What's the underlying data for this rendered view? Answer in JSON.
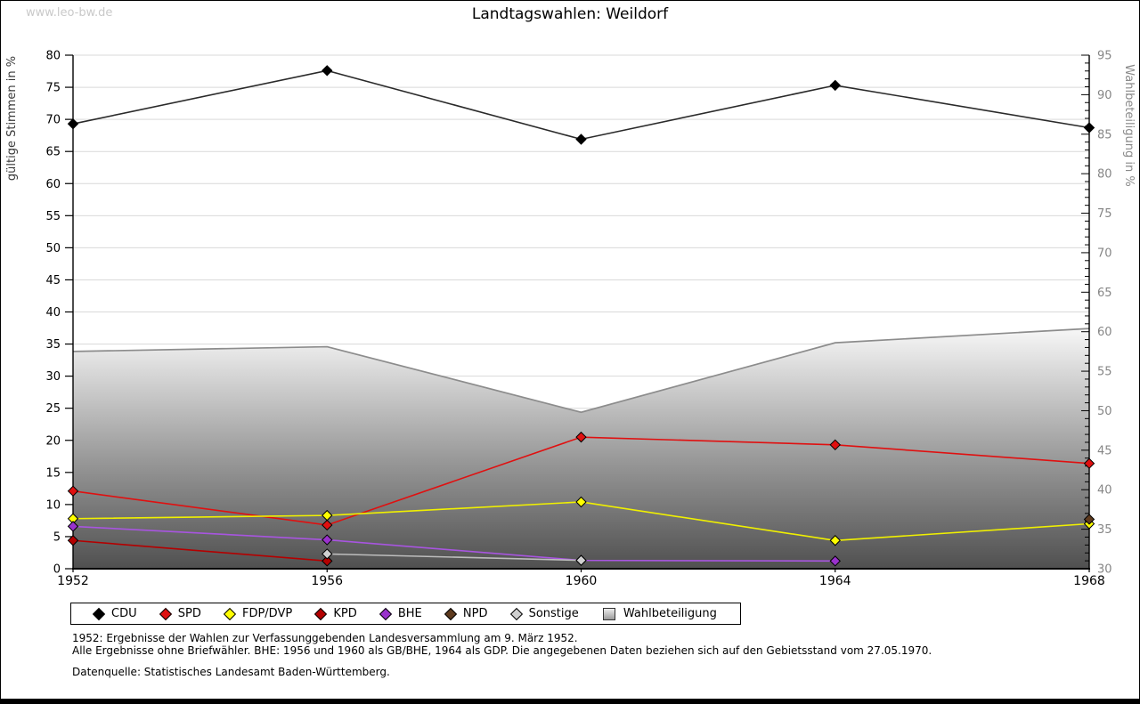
{
  "page": {
    "watermark": "www.leo-bw.de",
    "title": "Landtagswahlen: Weildorf"
  },
  "chart_data": {
    "type": "line",
    "title": "Landtagswahlen: Weildorf",
    "categories": [
      "1952",
      "1956",
      "1960",
      "1964",
      "1968"
    ],
    "axis_left": {
      "label": "gültige Stimmen in %",
      "min": 0,
      "max": 80,
      "step": 5
    },
    "axis_right": {
      "label": "Wahlbeteiligung in %",
      "min": 30,
      "max": 95,
      "step": 5,
      "minor_step": 1
    },
    "grid": true,
    "grid_color": "#d9d9d9",
    "legend_position": "bottom",
    "series": [
      {
        "name": "CDU",
        "color": "#000000",
        "line_color": "#2a2a2a",
        "values": [
          69.3,
          77.6,
          66.9,
          75.3,
          68.7
        ]
      },
      {
        "name": "SPD",
        "color": "#e01010",
        "line_color": "#e01010",
        "values": [
          12.1,
          6.8,
          20.5,
          19.3,
          16.4
        ]
      },
      {
        "name": "FDP/DVP",
        "color": "#ffff00",
        "line_color": "#f0f000",
        "values": [
          7.8,
          8.3,
          10.4,
          4.4,
          7.0
        ]
      },
      {
        "name": "KPD",
        "color": "#b40000",
        "line_color": "#b40000",
        "values": [
          4.4,
          1.2,
          null,
          null,
          null
        ]
      },
      {
        "name": "BHE",
        "color": "#9932cc",
        "line_color": "#a855e0",
        "values": [
          6.6,
          4.5,
          1.3,
          1.2,
          null
        ]
      },
      {
        "name": "NPD",
        "color": "#5e3a1e",
        "line_color": "#5e3a1e",
        "values": [
          null,
          null,
          null,
          null,
          7.7
        ]
      },
      {
        "name": "Sonstige",
        "color": "#d0d0d0",
        "line_color": "#bdbdbd",
        "values": [
          null,
          2.3,
          1.3,
          null,
          null
        ]
      }
    ],
    "participation": {
      "name": "Wahlbeteiligung",
      "axis": "right",
      "values": [
        57.5,
        58.1,
        49.8,
        58.6,
        60.4
      ],
      "edge_color": "#8c8c8c",
      "fill_top": "#f7f7f7",
      "fill_mid": "#989898",
      "fill_bottom": "#505050"
    }
  },
  "notes": [
    "1952: Ergebnisse der Wahlen zur Verfassunggebenden Landesversammlung am 9. März 1952.",
    "Alle Ergebnisse ohne Briefwähler. BHE: 1956 und 1960 als GB/BHE, 1964 als GDP. Die angegebenen Daten beziehen sich auf den Gebietsstand vom 27.05.1970.",
    "Datenquelle: Statistisches Landesamt Baden-Württemberg."
  ]
}
